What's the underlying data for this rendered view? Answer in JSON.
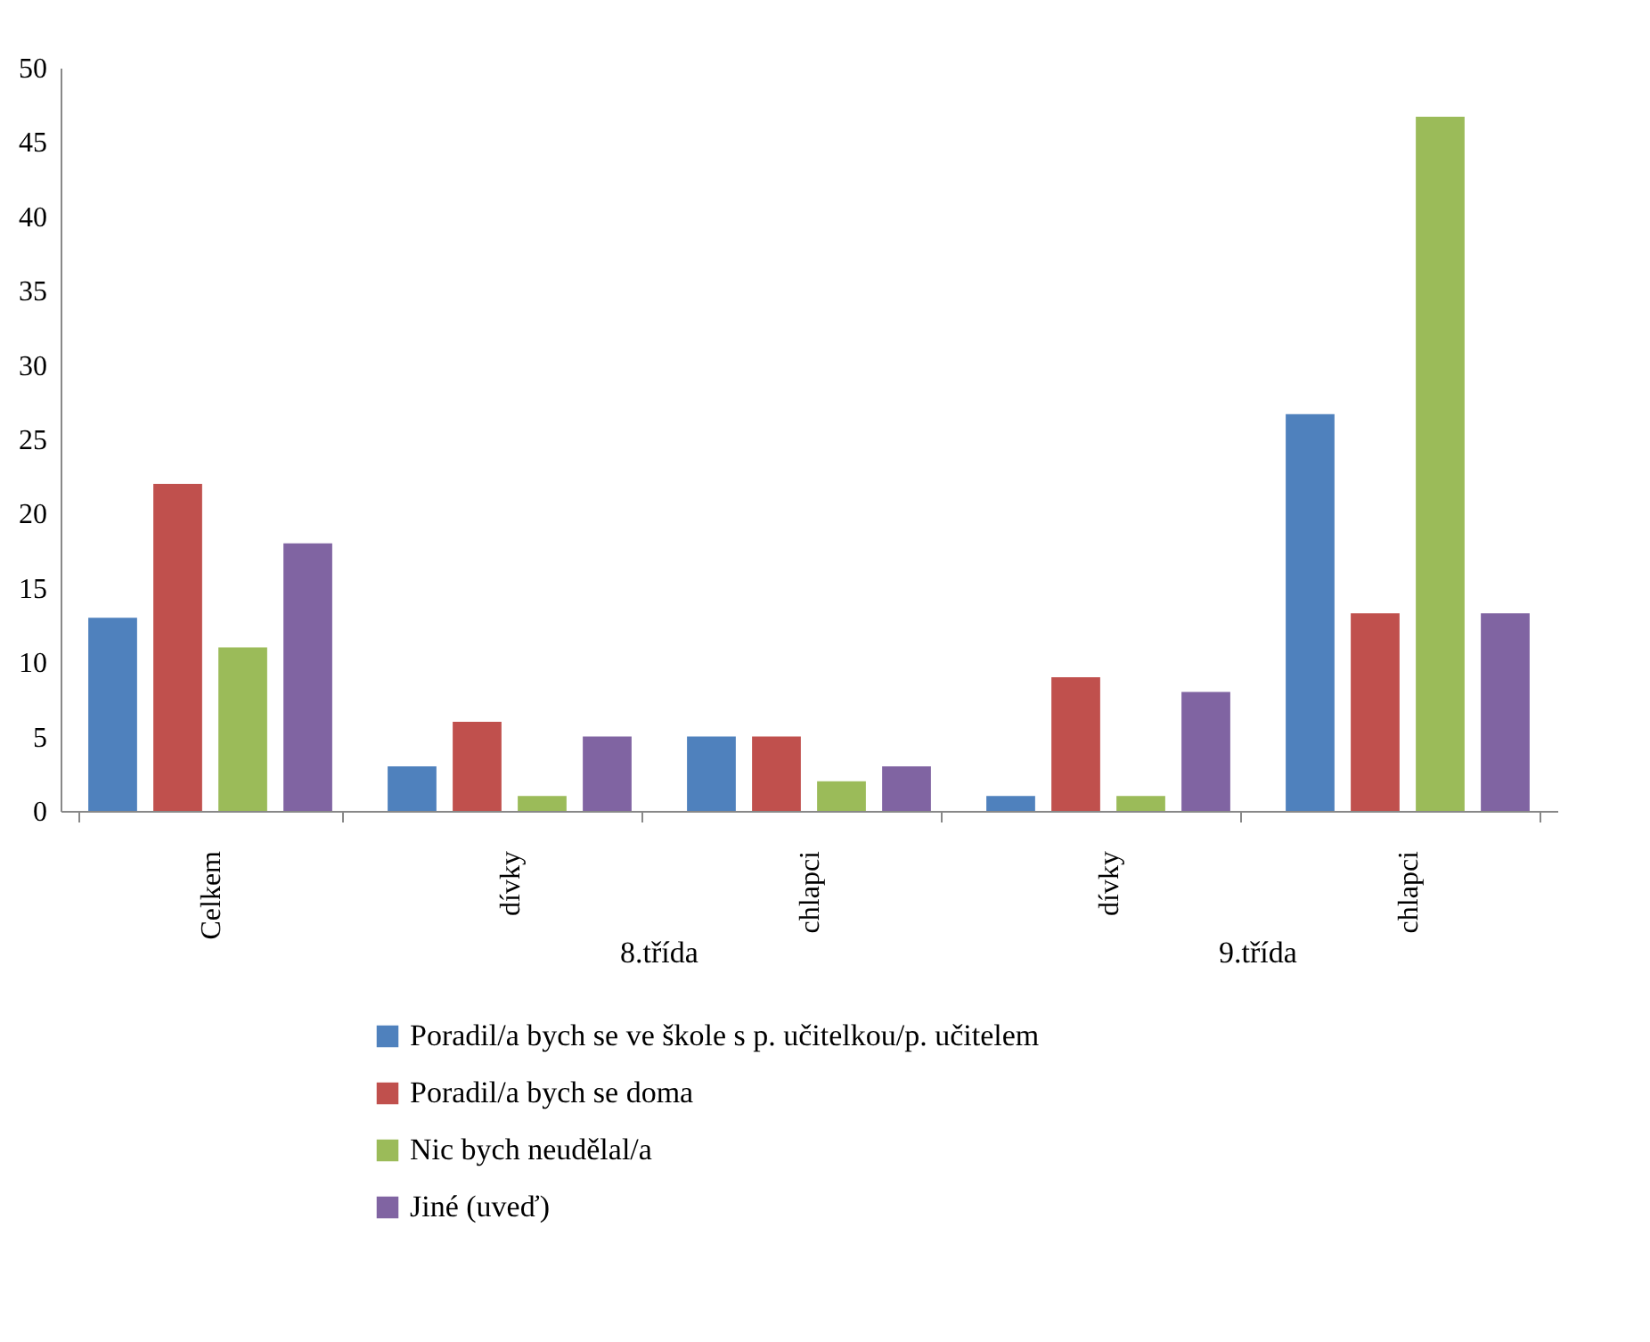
{
  "chart_data": {
    "type": "bar",
    "categories": [
      "Celkem",
      "dívky",
      "chlapci",
      "dívky",
      "chlapci"
    ],
    "annotations": [
      "8.třída",
      "9.třída"
    ],
    "series": [
      {
        "name": "Poradil/a bych se ve škole s p. učitelkou/p. učitelem",
        "color": "#4f81bd",
        "values": [
          13,
          3,
          5,
          1,
          26.7
        ]
      },
      {
        "name": "Poradil/a bych se doma",
        "color": "#c0504d",
        "values": [
          22,
          6,
          5,
          9,
          13.3
        ]
      },
      {
        "name": "Nic bych neudělal/a",
        "color": "#9bbb59",
        "values": [
          11,
          1,
          2,
          1,
          46.7
        ]
      },
      {
        "name": "Jiné (uveď)",
        "color": "#8064a2",
        "values": [
          18,
          5,
          3,
          8,
          13.3
        ]
      }
    ],
    "ylim": [
      0,
      50
    ],
    "yticks": [
      0,
      5,
      10,
      15,
      20,
      25,
      30,
      35,
      40,
      45,
      50
    ],
    "legend": "bottom"
  }
}
